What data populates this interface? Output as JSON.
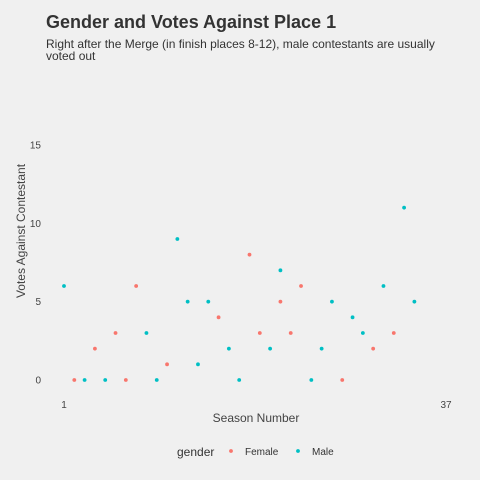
{
  "chart_data": {
    "type": "scatter",
    "title": "Gender and Votes Against Place 1",
    "subtitle_lines": [
      "Right after the Merge (in finish places 8-12), male contestants are usually",
      "voted out"
    ],
    "xlabel": "Season Number",
    "ylabel": "Votes Against Contestant",
    "xlim": [
      1,
      37
    ],
    "ylim": [
      0,
      15
    ],
    "x_ticks": [
      1,
      37
    ],
    "y_ticks": [
      0,
      5,
      10,
      15
    ],
    "grid": false,
    "legend": {
      "title": "gender",
      "position": "bottom"
    },
    "series": [
      {
        "name": "Female",
        "color": "#F8766D",
        "points": [
          {
            "x": 2,
            "y": 0
          },
          {
            "x": 4,
            "y": 2
          },
          {
            "x": 6,
            "y": 3
          },
          {
            "x": 7,
            "y": 0
          },
          {
            "x": 8,
            "y": 6
          },
          {
            "x": 11,
            "y": 1
          },
          {
            "x": 16,
            "y": 4
          },
          {
            "x": 19,
            "y": 8
          },
          {
            "x": 20,
            "y": 3
          },
          {
            "x": 22,
            "y": 5
          },
          {
            "x": 23,
            "y": 3
          },
          {
            "x": 24,
            "y": 6
          },
          {
            "x": 28,
            "y": 0
          },
          {
            "x": 31,
            "y": 2
          },
          {
            "x": 33,
            "y": 3
          }
        ]
      },
      {
        "name": "Male",
        "color": "#00BFC4",
        "points": [
          {
            "x": 1,
            "y": 6
          },
          {
            "x": 3,
            "y": 0
          },
          {
            "x": 5,
            "y": 0
          },
          {
            "x": 9,
            "y": 3
          },
          {
            "x": 10,
            "y": 0
          },
          {
            "x": 12,
            "y": 9
          },
          {
            "x": 13,
            "y": 5
          },
          {
            "x": 14,
            "y": 1
          },
          {
            "x": 15,
            "y": 5
          },
          {
            "x": 17,
            "y": 2
          },
          {
            "x": 18,
            "y": 0
          },
          {
            "x": 21,
            "y": 2
          },
          {
            "x": 22,
            "y": 7
          },
          {
            "x": 25,
            "y": 0
          },
          {
            "x": 26,
            "y": 2
          },
          {
            "x": 27,
            "y": 5
          },
          {
            "x": 29,
            "y": 4
          },
          {
            "x": 30,
            "y": 3
          },
          {
            "x": 32,
            "y": 6
          },
          {
            "x": 34,
            "y": 11
          },
          {
            "x": 35,
            "y": 5
          }
        ]
      }
    ]
  }
}
